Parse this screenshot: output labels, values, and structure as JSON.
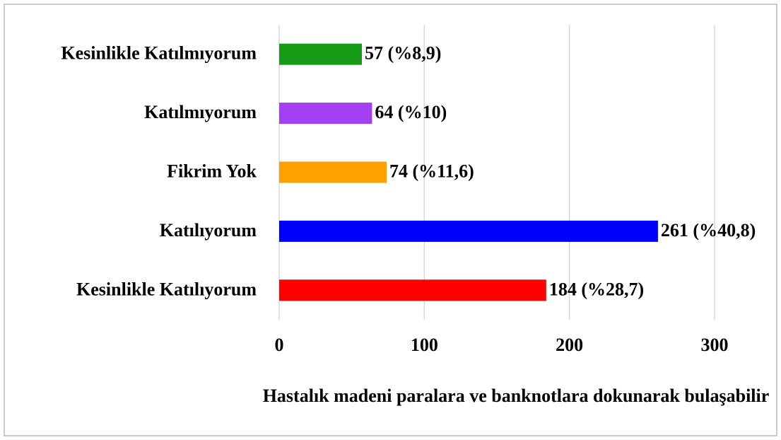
{
  "chart_data": {
    "type": "bar",
    "orientation": "horizontal",
    "x_label": "Hastalık madeni paralara ve banknotlara dokunarak bulaşabilir",
    "categories": [
      "Kesinlikle Katılmıyorum",
      "Katılmıyorum",
      "Fikrim Yok",
      "Katılıyorum",
      "Kesinlikle Katılıyorum"
    ],
    "values": [
      57,
      64,
      74,
      261,
      184
    ],
    "value_labels": [
      "57 (%8,9)",
      "64 (%10)",
      "74 (%11,6)",
      "261 (%40,8)",
      "184 (%28,7)"
    ],
    "colors": [
      "#169b16",
      "#a23ff2",
      "#ff9f00",
      "#0000ff",
      "#ff0000"
    ],
    "xlim": [
      0,
      300
    ],
    "xticks": [
      0,
      100,
      200,
      300
    ],
    "grid": true
  }
}
